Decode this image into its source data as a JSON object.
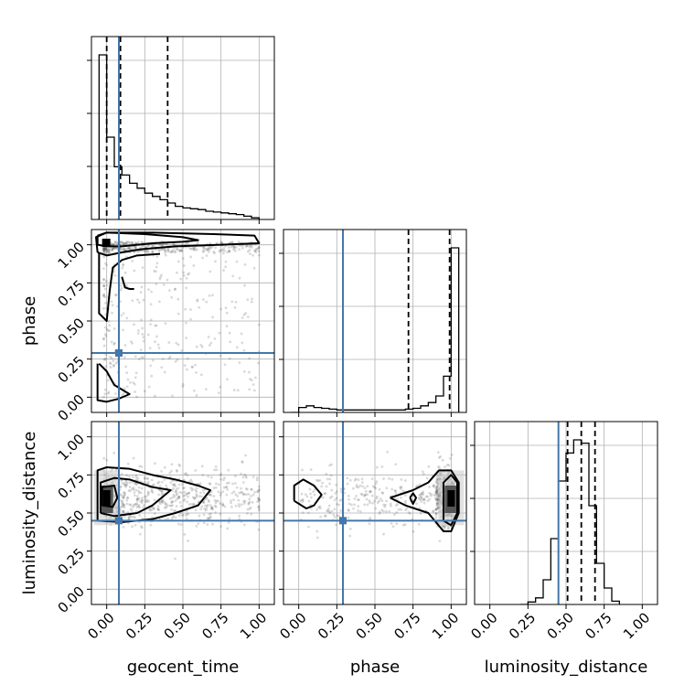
{
  "chart_data": {
    "type": "corner",
    "parameters": [
      "geocent_time",
      "phase",
      "luminosity_distance"
    ],
    "axis_range": [
      -0.1,
      1.1
    ],
    "ticks": [
      0.0,
      0.25,
      0.5,
      0.75,
      1.0
    ],
    "tick_labels": [
      "0.00",
      "0.25",
      "0.50",
      "0.75",
      "1.00"
    ],
    "grid": true,
    "colors": {
      "truth": "#4477aa",
      "hist": "#000000",
      "points": "#555555",
      "grid": "#b0b0b0"
    },
    "truths": {
      "geocent_time": 0.08,
      "phase": 0.29,
      "luminosity_distance": 0.45
    },
    "quantiles": {
      "geocent_time": [
        0.0,
        0.09,
        0.4
      ],
      "phase": [
        0.72,
        0.99
      ],
      "luminosity_distance": [
        0.51,
        0.6,
        0.69
      ]
    },
    "histograms": {
      "geocent_time": {
        "edges": [
          -0.05,
          0.0,
          0.05,
          0.1,
          0.15,
          0.2,
          0.25,
          0.3,
          0.35,
          0.4,
          0.45,
          0.5,
          0.55,
          0.6,
          0.65,
          0.7,
          0.75,
          0.8,
          0.85,
          0.9,
          0.95,
          1.0
        ],
        "counts": [
          1.0,
          0.5,
          0.32,
          0.27,
          0.22,
          0.19,
          0.16,
          0.14,
          0.12,
          0.1,
          0.08,
          0.07,
          0.065,
          0.06,
          0.05,
          0.045,
          0.04,
          0.035,
          0.03,
          0.02,
          0.01
        ]
      },
      "phase": {
        "edges": [
          -0.05,
          0.0,
          0.05,
          0.1,
          0.15,
          0.2,
          0.25,
          0.3,
          0.35,
          0.4,
          0.45,
          0.5,
          0.55,
          0.6,
          0.65,
          0.7,
          0.75,
          0.8,
          0.85,
          0.9,
          0.95,
          1.0,
          1.05
        ],
        "counts": [
          0.0,
          0.03,
          0.04,
          0.03,
          0.025,
          0.02,
          0.015,
          0.015,
          0.015,
          0.015,
          0.015,
          0.015,
          0.015,
          0.015,
          0.015,
          0.02,
          0.025,
          0.04,
          0.06,
          0.1,
          0.22,
          1.0
        ]
      },
      "luminosity_distance": {
        "edges": [
          0.2,
          0.25,
          0.3,
          0.35,
          0.4,
          0.45,
          0.5,
          0.55,
          0.6,
          0.65,
          0.7,
          0.75,
          0.8,
          0.85
        ],
        "counts": [
          0.0,
          0.015,
          0.04,
          0.15,
          0.4,
          0.75,
          0.92,
          1.0,
          0.98,
          0.6,
          0.25,
          0.1,
          0.02
        ]
      }
    },
    "contours": {
      "phase_vs_geocent_time": [
        [
          [
            -0.06,
            0.95
          ],
          [
            0.0,
            0.93
          ],
          [
            0.1,
            0.95
          ],
          [
            0.22,
            0.97
          ],
          [
            0.45,
            0.99
          ],
          [
            0.75,
            1.0
          ],
          [
            1.0,
            1.01
          ],
          [
            0.97,
            1.06
          ],
          [
            0.7,
            1.07
          ],
          [
            0.3,
            1.08
          ],
          [
            0.0,
            1.08
          ],
          [
            -0.07,
            1.05
          ],
          [
            -0.06,
            0.95
          ]
        ],
        [
          [
            -0.06,
            1.06
          ],
          [
            0.0,
            1.08
          ],
          [
            0.25,
            1.07
          ],
          [
            0.5,
            1.05
          ],
          [
            0.6,
            1.03
          ],
          [
            0.5,
            1.02
          ],
          [
            0.3,
            1.01
          ],
          [
            0.1,
            0.99
          ],
          [
            0.0,
            0.99
          ],
          [
            -0.06,
            1.0
          ],
          [
            -0.06,
            1.06
          ]
        ],
        [
          [
            -0.05,
            0.95
          ],
          [
            -0.05,
            0.55
          ],
          [
            0.0,
            0.5
          ],
          [
            0.02,
            0.7
          ],
          [
            0.04,
            0.85
          ],
          [
            0.1,
            0.9
          ],
          [
            0.2,
            0.93
          ],
          [
            0.35,
            0.94
          ]
        ],
        [
          [
            0.1,
            0.79
          ],
          [
            0.12,
            0.72
          ],
          [
            0.15,
            0.71
          ],
          [
            0.18,
            0.71
          ]
        ],
        [
          [
            -0.05,
            0.22
          ],
          [
            0.0,
            0.17
          ],
          [
            0.05,
            0.08
          ],
          [
            0.1,
            0.05
          ],
          [
            0.15,
            0.02
          ],
          [
            0.08,
            -0.01
          ],
          [
            0.0,
            -0.03
          ],
          [
            -0.06,
            -0.02
          ],
          [
            -0.06,
            0.22
          ]
        ]
      ],
      "luminosity_distance_vs_geocent_time": [
        [
          [
            -0.06,
            0.45
          ],
          [
            0.1,
            0.44
          ],
          [
            0.3,
            0.46
          ],
          [
            0.45,
            0.5
          ],
          [
            0.6,
            0.55
          ],
          [
            0.68,
            0.65
          ],
          [
            0.6,
            0.68
          ],
          [
            0.45,
            0.72
          ],
          [
            0.3,
            0.75
          ],
          [
            0.15,
            0.79
          ],
          [
            0.0,
            0.8
          ],
          [
            -0.06,
            0.78
          ],
          [
            -0.06,
            0.45
          ]
        ],
        [
          [
            -0.04,
            0.5
          ],
          [
            0.05,
            0.48
          ],
          [
            0.2,
            0.5
          ],
          [
            0.3,
            0.55
          ],
          [
            0.42,
            0.65
          ],
          [
            0.3,
            0.67
          ],
          [
            0.15,
            0.72
          ],
          [
            0.05,
            0.73
          ],
          [
            -0.04,
            0.7
          ],
          [
            -0.04,
            0.5
          ]
        ],
        [
          [
            -0.03,
            0.55
          ],
          [
            0.04,
            0.54
          ],
          [
            0.07,
            0.6
          ],
          [
            0.05,
            0.68
          ],
          [
            -0.03,
            0.67
          ],
          [
            -0.03,
            0.55
          ]
        ]
      ],
      "luminosity_distance_vs_phase": [
        [
          [
            -0.03,
            0.58
          ],
          [
            0.05,
            0.53
          ],
          [
            0.1,
            0.55
          ],
          [
            0.15,
            0.62
          ],
          [
            0.1,
            0.68
          ],
          [
            0.03,
            0.72
          ],
          [
            -0.03,
            0.68
          ],
          [
            -0.03,
            0.58
          ]
        ],
        [
          [
            0.6,
            0.6
          ],
          [
            0.7,
            0.55
          ],
          [
            0.85,
            0.5
          ],
          [
            0.95,
            0.38
          ],
          [
            1.0,
            0.38
          ],
          [
            1.05,
            0.5
          ],
          [
            1.05,
            0.7
          ],
          [
            1.0,
            0.78
          ],
          [
            0.92,
            0.78
          ],
          [
            0.85,
            0.7
          ],
          [
            0.75,
            0.65
          ],
          [
            0.6,
            0.6
          ]
        ],
        [
          [
            0.73,
            0.6
          ],
          [
            0.75,
            0.56
          ],
          [
            0.77,
            0.6
          ],
          [
            0.75,
            0.63
          ],
          [
            0.73,
            0.6
          ]
        ],
        [
          [
            0.95,
            0.45
          ],
          [
            1.0,
            0.42
          ],
          [
            1.04,
            0.5
          ],
          [
            1.04,
            0.7
          ],
          [
            1.0,
            0.75
          ],
          [
            0.95,
            0.7
          ],
          [
            0.95,
            0.45
          ]
        ]
      ]
    }
  }
}
